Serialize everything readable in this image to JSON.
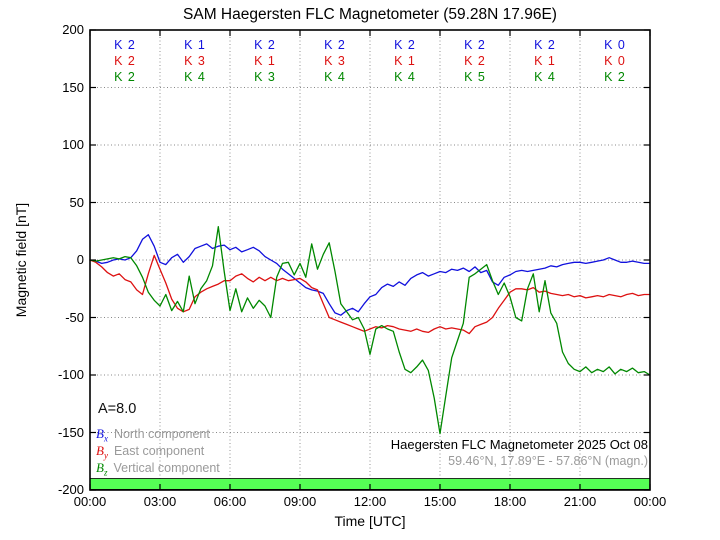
{
  "title": "SAM Haegersten FLC Magnetometer (59.28N 17.96E)",
  "colors": {
    "bx": "#1111dd",
    "by": "#dd1111",
    "bz": "#008800",
    "status_bar": "#55ff55",
    "grid": "#888888",
    "muted_text": "#9a9a9a",
    "frame": "#000000"
  },
  "k_index": {
    "row_order": [
      "bx",
      "by",
      "bz"
    ],
    "bx": [
      "K 2",
      "K 1",
      "K 2",
      "K 2",
      "K 2",
      "K 2",
      "K 2",
      "K 0"
    ],
    "by": [
      "K 2",
      "K 3",
      "K 1",
      "K 3",
      "K 1",
      "K 2",
      "K 1",
      "K 0"
    ],
    "bz": [
      "K 2",
      "K 4",
      "K 3",
      "K 4",
      "K 4",
      "K 5",
      "K 4",
      "K 2"
    ]
  },
  "legend": {
    "a_index": "A=8.0",
    "items": [
      {
        "symbol_main": "B",
        "symbol_sub": "x",
        "color_key": "bx",
        "label": "North component"
      },
      {
        "symbol_main": "B",
        "symbol_sub": "y",
        "color_key": "by",
        "label": "East component"
      },
      {
        "symbol_main": "B",
        "symbol_sub": "z",
        "color_key": "bz",
        "label": "Vertical component"
      }
    ]
  },
  "annotation": {
    "line1": "Haegersten FLC Magnetometer 2025 Oct 08",
    "line2": "59.46°N, 17.89°E - 57.86°N (magn.)"
  },
  "chart_data": {
    "type": "line",
    "title": "SAM Haegersten FLC Magnetometer (59.28N 17.96E)",
    "xlabel": "Time [UTC]",
    "ylabel": "Magnetic field [nT]",
    "xlim_hours": [
      0,
      24
    ],
    "ylim": [
      -200,
      200
    ],
    "grid": true,
    "x_ticks": [
      "00:00",
      "03:00",
      "06:00",
      "09:00",
      "12:00",
      "15:00",
      "18:00",
      "21:00",
      "00:00"
    ],
    "x_tick_hours": [
      0,
      3,
      6,
      9,
      12,
      15,
      18,
      21,
      24
    ],
    "y_ticks": [
      200,
      150,
      100,
      50,
      0,
      -50,
      -100,
      -150,
      -200
    ],
    "x_hours_step": 0.25,
    "series": [
      {
        "name": "Bx North component",
        "color_key": "bx",
        "values": [
          0,
          -1,
          -3,
          -2,
          0,
          1,
          0,
          2,
          8,
          18,
          22,
          12,
          -2,
          -4,
          2,
          5,
          -2,
          3,
          10,
          12,
          14,
          10,
          12,
          13,
          9,
          11,
          7,
          9,
          11,
          8,
          3,
          0,
          -3,
          -8,
          -12,
          -16,
          -20,
          -24,
          -26,
          -27,
          -29,
          -38,
          -46,
          -48,
          -44,
          -42,
          -45,
          -38,
          -32,
          -30,
          -24,
          -21,
          -23,
          -19,
          -22,
          -16,
          -13,
          -11,
          -14,
          -12,
          -10,
          -11,
          -8,
          -9,
          -7,
          -10,
          -6,
          -11,
          -9,
          -19,
          -22,
          -15,
          -13,
          -10,
          -9,
          -10,
          -9,
          -8,
          -7,
          -5,
          -6,
          -4,
          -3,
          -2,
          -2,
          -3,
          -2,
          -1,
          0,
          2,
          0,
          -2,
          -2,
          -1,
          -2,
          -3,
          -3
        ]
      },
      {
        "name": "By East component",
        "color_key": "by",
        "values": [
          0,
          -2,
          -6,
          -11,
          -14,
          -12,
          -17,
          -19,
          -26,
          -30,
          -12,
          4,
          -8,
          -20,
          -34,
          -42,
          -45,
          -43,
          -32,
          -28,
          -25,
          -23,
          -21,
          -18,
          -18,
          -14,
          -12,
          -16,
          -19,
          -15,
          -18,
          -15,
          -18,
          -16,
          -18,
          -17,
          -16,
          -19,
          -24,
          -26,
          -38,
          -50,
          -52,
          -54,
          -56,
          -58,
          -60,
          -62,
          -60,
          -58,
          -59,
          -57,
          -58,
          -60,
          -61,
          -62,
          -60,
          -62,
          -63,
          -60,
          -58,
          -60,
          -59,
          -60,
          -61,
          -64,
          -58,
          -56,
          -54,
          -50,
          -42,
          -35,
          -28,
          -25,
          -25,
          -26,
          -24,
          -28,
          -27,
          -29,
          -30,
          -31,
          -30,
          -32,
          -31,
          -33,
          -32,
          -31,
          -32,
          -30,
          -31,
          -32,
          -30,
          -29,
          -31,
          -30,
          -30
        ]
      },
      {
        "name": "Bz Vertical component",
        "color_key": "bz",
        "values": [
          0,
          -1,
          0,
          1,
          2,
          1,
          3,
          2,
          -5,
          -15,
          -28,
          -35,
          -40,
          -30,
          -44,
          -36,
          -45,
          -14,
          -38,
          -25,
          -18,
          -5,
          29,
          -10,
          -44,
          -25,
          -45,
          -33,
          -42,
          -35,
          -40,
          -50,
          -15,
          -3,
          -2,
          -13,
          -3,
          -15,
          14,
          -8,
          5,
          15,
          -10,
          -38,
          -45,
          -52,
          -50,
          -60,
          -82,
          -60,
          -57,
          -60,
          -62,
          -80,
          -95,
          -98,
          -93,
          -87,
          -96,
          -120,
          -151,
          -118,
          -85,
          -70,
          -55,
          -15,
          -12,
          -8,
          -4,
          -18,
          -30,
          -20,
          -32,
          -50,
          -53,
          -25,
          -12,
          -45,
          -18,
          -46,
          -55,
          -80,
          -90,
          -95,
          -97,
          -93,
          -98,
          -95,
          -97,
          -93,
          -99,
          -95,
          -97,
          -94,
          -98,
          -97,
          -100
        ]
      }
    ],
    "status_bar": {
      "from_nT": -190,
      "to_nT": -199.5,
      "color_key": "status_bar"
    }
  }
}
